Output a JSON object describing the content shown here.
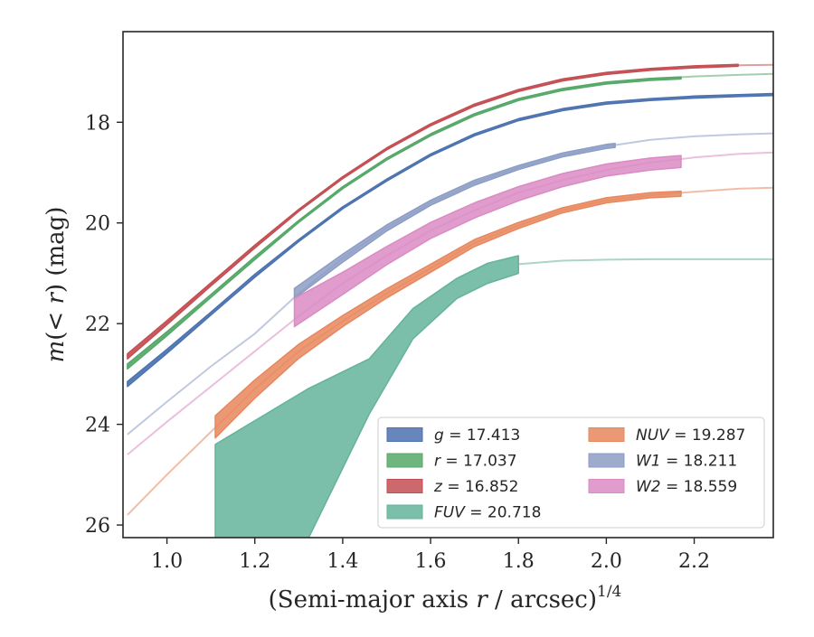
{
  "chart_data": {
    "type": "line",
    "title": "",
    "xlabel": "(Semi-major axis r / arcsec)",
    "xlabel_var": "r",
    "xlabel_prefix": "(Semi-major axis ",
    "xlabel_suffix": " / arcsec)",
    "xlabel_exponent": "1/4",
    "ylabel": "m(< r) (mag)",
    "ylabel_m": "m",
    "ylabel_lt": "(< ",
    "ylabel_r": "r",
    "ylabel_rest": ") (mag)",
    "xlim": [
      0.9,
      2.38
    ],
    "ylim": [
      26.25,
      16.2
    ],
    "y_inverted": true,
    "grid": false,
    "legend_placement": "lower-right",
    "xticks": [
      1.0,
      1.2,
      1.4,
      1.6,
      1.8,
      2.0,
      2.2
    ],
    "xtick_labels": [
      "1.0",
      "1.2",
      "1.4",
      "1.6",
      "1.8",
      "2.0",
      "2.2"
    ],
    "yticks": [
      18,
      20,
      22,
      24,
      26
    ],
    "ytick_labels": [
      "18",
      "20",
      "22",
      "24",
      "26"
    ],
    "series": [
      {
        "name": "g = 17.413",
        "band": "g",
        "mag": "17.413",
        "color": "#4c72b0",
        "model_x": [
          0.91,
          1.0,
          1.1,
          1.2,
          1.3,
          1.4,
          1.5,
          1.6,
          1.7,
          1.8,
          1.9,
          2.0,
          2.1,
          2.2,
          2.3,
          2.38
        ],
        "model_y": [
          23.2,
          22.55,
          21.8,
          21.05,
          20.35,
          19.7,
          19.15,
          18.65,
          18.25,
          17.95,
          17.75,
          17.62,
          17.55,
          17.5,
          17.47,
          17.45
        ],
        "data_x": [
          0.91,
          1.0,
          1.1,
          1.2,
          1.3,
          1.4,
          1.5,
          1.6,
          1.7,
          1.8,
          1.9,
          2.0,
          2.1,
          2.2,
          2.3,
          2.38
        ],
        "data_y": [
          23.2,
          22.55,
          21.8,
          21.05,
          20.35,
          19.7,
          19.15,
          18.65,
          18.25,
          17.95,
          17.75,
          17.62,
          17.55,
          17.5,
          17.47,
          17.45
        ],
        "data_err": [
          0.05,
          0.04,
          0.03,
          0.03,
          0.02,
          0.02,
          0.02,
          0.02,
          0.02,
          0.02,
          0.02,
          0.02,
          0.02,
          0.02,
          0.02,
          0.02
        ]
      },
      {
        "name": "r = 17.037",
        "band": "r",
        "mag": "17.037",
        "color": "#55a868",
        "model_x": [
          0.91,
          1.0,
          1.1,
          1.2,
          1.3,
          1.4,
          1.5,
          1.6,
          1.7,
          1.8,
          1.9,
          2.0,
          2.1,
          2.2,
          2.3,
          2.38
        ],
        "model_y": [
          22.85,
          22.2,
          21.45,
          20.7,
          19.97,
          19.3,
          18.73,
          18.25,
          17.85,
          17.55,
          17.35,
          17.22,
          17.14,
          17.09,
          17.06,
          17.04
        ],
        "data_x": [
          0.91,
          1.0,
          1.1,
          1.2,
          1.3,
          1.4,
          1.5,
          1.6,
          1.7,
          1.8,
          1.9,
          2.0,
          2.1,
          2.17
        ],
        "data_y": [
          22.85,
          22.2,
          21.45,
          20.7,
          19.97,
          19.3,
          18.73,
          18.25,
          17.85,
          17.55,
          17.35,
          17.22,
          17.15,
          17.12
        ],
        "data_err": [
          0.05,
          0.04,
          0.03,
          0.03,
          0.02,
          0.02,
          0.02,
          0.02,
          0.02,
          0.02,
          0.02,
          0.02,
          0.02,
          0.02
        ]
      },
      {
        "name": "z = 16.852",
        "band": "z",
        "mag": "16.852",
        "color": "#c44e52",
        "model_x": [
          0.91,
          1.0,
          1.1,
          1.2,
          1.3,
          1.4,
          1.5,
          1.6,
          1.7,
          1.8,
          1.9,
          2.0,
          2.1,
          2.2,
          2.3,
          2.38
        ],
        "model_y": [
          22.65,
          21.98,
          21.22,
          20.47,
          19.75,
          19.1,
          18.53,
          18.05,
          17.66,
          17.37,
          17.16,
          17.03,
          16.95,
          16.9,
          16.87,
          16.86
        ],
        "data_x": [
          0.91,
          1.0,
          1.1,
          1.2,
          1.3,
          1.4,
          1.5,
          1.6,
          1.7,
          1.8,
          1.9,
          2.0,
          2.1,
          2.2,
          2.3
        ],
        "data_y": [
          22.65,
          21.98,
          21.22,
          20.47,
          19.75,
          19.1,
          18.53,
          18.05,
          17.66,
          17.37,
          17.16,
          17.03,
          16.95,
          16.9,
          16.87
        ],
        "data_err": [
          0.05,
          0.04,
          0.03,
          0.03,
          0.02,
          0.02,
          0.02,
          0.02,
          0.02,
          0.02,
          0.02,
          0.02,
          0.02,
          0.02,
          0.02
        ]
      },
      {
        "name": "FUV = 20.718",
        "band": "FUV",
        "mag": "20.718",
        "color": "#64b39b",
        "model_x": [
          1.8,
          1.9,
          2.0,
          2.1,
          2.2,
          2.3,
          2.38
        ],
        "model_y": [
          20.82,
          20.75,
          20.73,
          20.72,
          20.72,
          20.72,
          20.72
        ],
        "data_x": [
          1.11,
          1.32,
          1.46,
          1.56,
          1.66,
          1.73,
          1.8
        ],
        "data_upper": [
          24.4,
          23.3,
          22.7,
          21.7,
          21.1,
          20.8,
          20.65
        ],
        "data_lower": [
          26.3,
          26.3,
          23.8,
          22.3,
          21.5,
          21.2,
          21.0
        ]
      },
      {
        "name": "NUV = 19.287",
        "band": "NUV",
        "mag": "19.287",
        "color": "#e8875d",
        "model_x": [
          0.91,
          1.0,
          1.1,
          1.2,
          1.3,
          1.4,
          1.5,
          1.6,
          1.7,
          1.8,
          1.9,
          2.0,
          2.1,
          2.2,
          2.3,
          2.38
        ],
        "model_y": [
          25.8,
          25.0,
          24.15,
          23.3,
          22.55,
          21.95,
          21.4,
          20.9,
          20.4,
          20.05,
          19.75,
          19.55,
          19.45,
          19.38,
          19.32,
          19.3
        ],
        "data_x": [
          1.11,
          1.2,
          1.3,
          1.4,
          1.5,
          1.6,
          1.7,
          1.8,
          1.9,
          2.0,
          2.1,
          2.17
        ],
        "data_y": [
          24.05,
          23.3,
          22.55,
          21.95,
          21.4,
          20.9,
          20.4,
          20.05,
          19.75,
          19.55,
          19.45,
          19.42
        ],
        "data_err": [
          0.22,
          0.18,
          0.14,
          0.11,
          0.09,
          0.08,
          0.07,
          0.06,
          0.05,
          0.05,
          0.05,
          0.05
        ]
      },
      {
        "name": "W1 = 18.211",
        "band": "W1",
        "mag": "18.211",
        "color": "#8c9cc4",
        "model_x": [
          0.91,
          1.0,
          1.1,
          1.2,
          1.3,
          1.4,
          1.5,
          1.6,
          1.7,
          1.8,
          1.9,
          2.0,
          2.1,
          2.2,
          2.3,
          2.38
        ],
        "model_y": [
          24.2,
          23.55,
          22.85,
          22.2,
          21.4,
          20.7,
          20.1,
          19.6,
          19.2,
          18.9,
          18.65,
          18.48,
          18.35,
          18.28,
          18.24,
          18.22
        ],
        "data_x": [
          1.29,
          1.4,
          1.5,
          1.6,
          1.7,
          1.8,
          1.9,
          2.0,
          2.02
        ],
        "data_y": [
          21.4,
          20.7,
          20.1,
          19.6,
          19.2,
          18.9,
          18.65,
          18.48,
          18.46
        ],
        "data_err": [
          0.1,
          0.08,
          0.06,
          0.05,
          0.05,
          0.04,
          0.04,
          0.04,
          0.04
        ]
      },
      {
        "name": "W2 = 18.559",
        "band": "W2",
        "mag": "18.559",
        "color": "#da8bc3",
        "model_x": [
          0.91,
          1.0,
          1.1,
          1.2,
          1.3,
          1.4,
          1.5,
          1.6,
          1.7,
          1.8,
          1.9,
          2.0,
          2.1,
          2.2,
          2.3,
          2.38
        ],
        "model_y": [
          24.6,
          23.95,
          23.25,
          22.55,
          21.85,
          21.2,
          20.65,
          20.15,
          19.75,
          19.4,
          19.15,
          18.95,
          18.8,
          18.7,
          18.63,
          18.6
        ],
        "data_x": [
          1.29,
          1.4,
          1.5,
          1.6,
          1.7,
          1.8,
          1.9,
          2.0,
          2.1,
          2.17
        ],
        "data_y": [
          21.78,
          21.2,
          20.65,
          20.15,
          19.75,
          19.42,
          19.15,
          18.95,
          18.83,
          18.78
        ],
        "data_err": [
          0.28,
          0.22,
          0.18,
          0.16,
          0.15,
          0.14,
          0.13,
          0.12,
          0.12,
          0.12
        ]
      }
    ]
  }
}
